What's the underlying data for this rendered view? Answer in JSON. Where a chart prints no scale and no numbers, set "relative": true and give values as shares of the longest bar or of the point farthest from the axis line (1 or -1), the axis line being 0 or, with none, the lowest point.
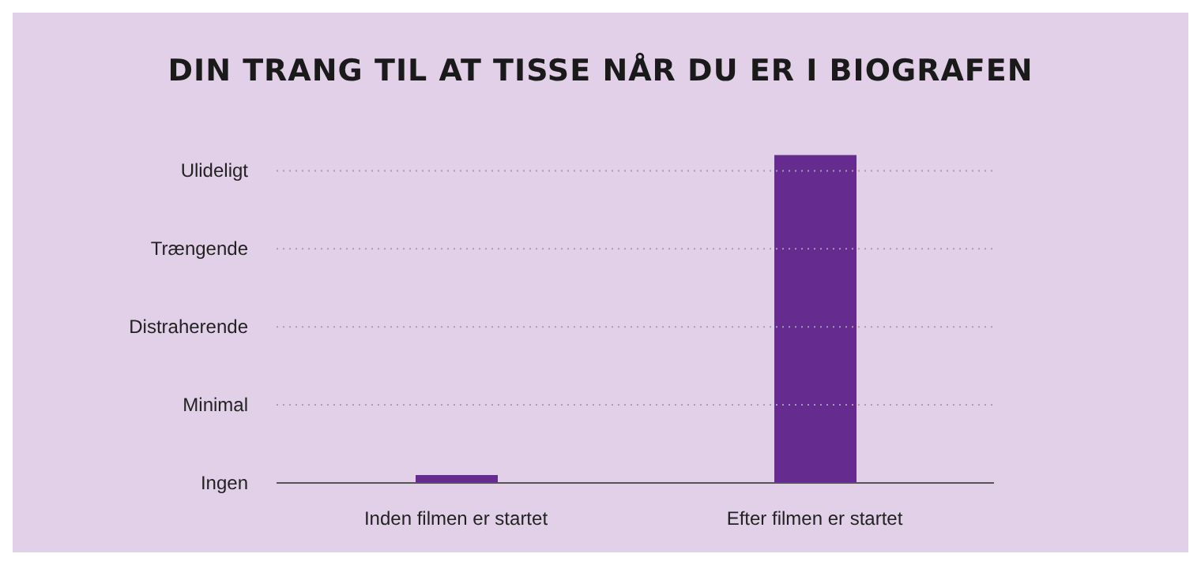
{
  "chart_data": {
    "type": "bar",
    "title": "DIN TRANG TIL AT TISSE NÅR DU ER I BIOGRAFEN",
    "categories": [
      "Inden filmen er startet",
      "Efter filmen er startet"
    ],
    "values": [
      0.024,
      1
    ],
    "color": "#652b8f",
    "relative": true,
    "annotations": [
      "Ingen"
    ],
    "ref_lines": [
      {
        "axis": "y",
        "value": 0.238,
        "label": "Minimal",
        "line_style": "dotted",
        "color": "#a89ab0"
      },
      {
        "axis": "y",
        "value": 0.476,
        "label": "Distraherende",
        "line_style": "dotted",
        "color": "#a89ab0"
      },
      {
        "axis": "y",
        "value": 0.714,
        "label": "Trængende",
        "line_style": "dotted",
        "color": "#a89ab0"
      },
      {
        "axis": "y",
        "value": 0.952,
        "label": "Ulideligt",
        "line_style": "dotted",
        "color": "#a89ab0"
      }
    ]
  }
}
